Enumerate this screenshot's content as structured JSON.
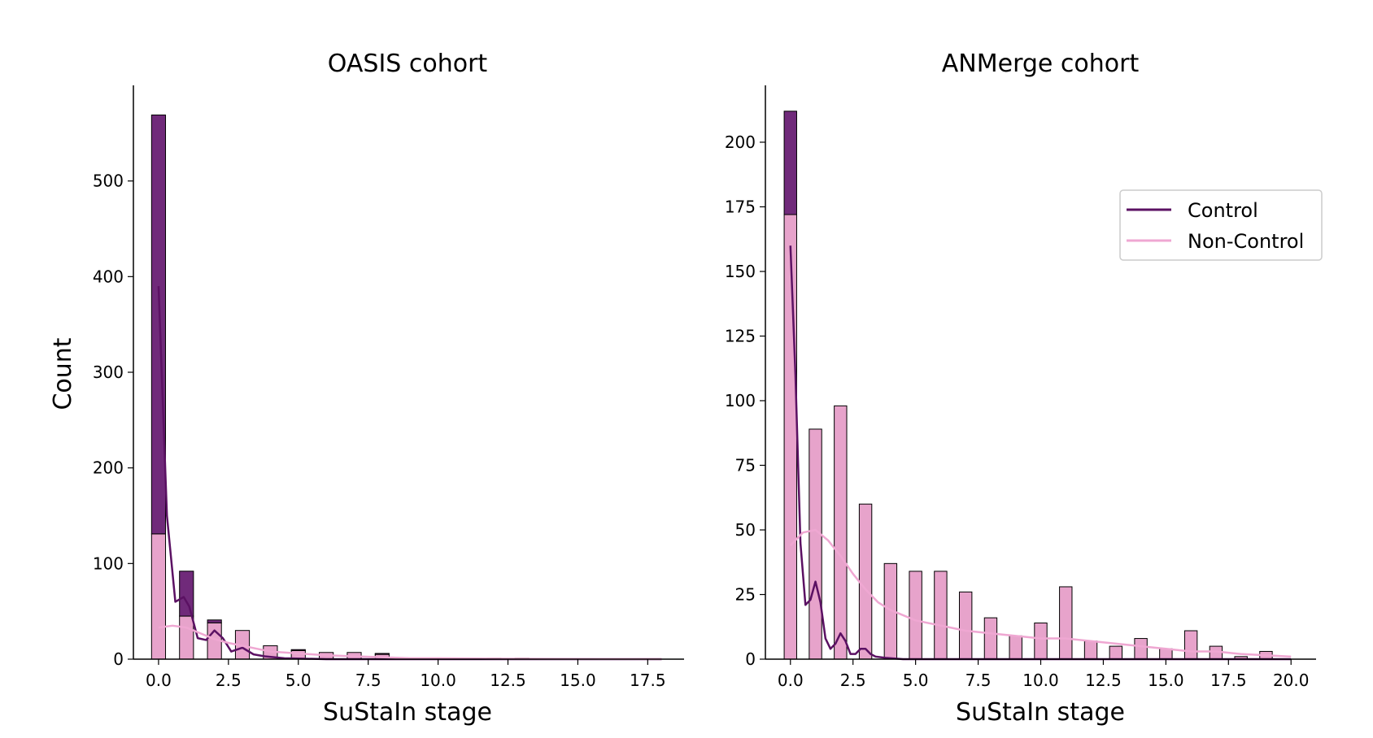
{
  "figure": {
    "ylabel": "Count",
    "legend": {
      "placement": "upper-right of right panel",
      "entries": [
        {
          "label": "Control",
          "color": "#5b1163"
        },
        {
          "label": "Non-Control",
          "color": "#efa7d2"
        }
      ]
    },
    "colors": {
      "control_bar": "#702a7a",
      "noncontrol_bar": "#e7a3cb",
      "control_line": "#5b1163",
      "noncontrol_line": "#efa7d2",
      "bar_edge": "#000000"
    }
  },
  "chart_data": [
    {
      "type": "bar",
      "stacked_histogram_with_kde": true,
      "title": "OASIS cohort",
      "xlabel": "SuStaIn stage",
      "ylabel": "Count",
      "xlim": [
        -0.9,
        18.8
      ],
      "ylim": [
        0,
        600
      ],
      "xticks": [
        "0.0",
        "2.5",
        "5.0",
        "7.5",
        "10.0",
        "12.5",
        "15.0",
        "17.5"
      ],
      "yticks": [
        "0",
        "100",
        "200",
        "300",
        "400",
        "500"
      ],
      "bin_centers": [
        0,
        1,
        2,
        3,
        4,
        5,
        6,
        7,
        8,
        9,
        10,
        11,
        12,
        13,
        14,
        15,
        16,
        17
      ],
      "bin_width": 0.5,
      "series": [
        {
          "name": "Non-Control",
          "values": [
            131,
            45,
            38,
            30,
            14,
            9,
            7,
            7,
            5,
            1,
            1,
            1,
            1,
            1,
            0,
            0,
            0,
            0
          ]
        },
        {
          "name": "Control",
          "values": [
            438,
            47,
            3,
            0,
            0,
            1,
            0,
            0,
            1,
            0,
            0,
            0,
            0,
            0,
            0,
            0,
            0,
            0
          ]
        }
      ],
      "kde": [
        {
          "name": "Control",
          "x": [
            0,
            0.3,
            0.6,
            0.9,
            1.1,
            1.4,
            1.7,
            2.0,
            2.3,
            2.6,
            3.0,
            3.4,
            3.8,
            4.5,
            6,
            8,
            10,
            14,
            18
          ],
          "y": [
            390,
            150,
            60,
            65,
            55,
            22,
            20,
            30,
            22,
            8,
            12,
            5,
            3,
            1,
            0,
            0,
            0,
            0,
            0
          ]
        },
        {
          "name": "Non-Control",
          "x": [
            0,
            0.5,
            1,
            1.5,
            2,
            2.5,
            3,
            3.5,
            4,
            5,
            6,
            7,
            8,
            9,
            10,
            12,
            14,
            16,
            18
          ],
          "y": [
            33,
            35,
            33,
            27,
            21,
            17,
            14,
            11,
            8,
            6,
            4,
            3,
            2,
            1,
            1,
            0.5,
            0.3,
            0.2,
            0.1
          ]
        }
      ]
    },
    {
      "type": "bar",
      "stacked_histogram_with_kde": true,
      "title": "ANMerge cohort",
      "xlabel": "SuStaIn stage",
      "ylabel": "",
      "xlim": [
        -1,
        21
      ],
      "ylim": [
        0,
        222
      ],
      "xticks": [
        "0.0",
        "2.5",
        "5.0",
        "7.5",
        "10.0",
        "12.5",
        "15.0",
        "17.5",
        "20.0"
      ],
      "yticks": [
        "0",
        "25",
        "50",
        "75",
        "100",
        "125",
        "150",
        "175",
        "200"
      ],
      "bin_centers": [
        0,
        1,
        2,
        3,
        4,
        5,
        6,
        7,
        8,
        9,
        10,
        11,
        12,
        13,
        14,
        15,
        16,
        17,
        18,
        19
      ],
      "bin_width": 0.5,
      "series": [
        {
          "name": "Non-Control",
          "values": [
            172,
            89,
            98,
            60,
            37,
            34,
            34,
            26,
            16,
            9,
            14,
            28,
            7,
            5,
            8,
            4,
            11,
            5,
            1,
            3
          ]
        },
        {
          "name": "Control",
          "values": [
            40,
            0,
            0,
            0,
            0,
            0,
            0,
            0,
            0,
            0,
            0,
            0,
            0,
            0,
            0,
            0,
            0,
            0,
            0,
            0
          ]
        }
      ],
      "kde": [
        {
          "name": "Control",
          "x": [
            0,
            0.2,
            0.4,
            0.6,
            0.8,
            1.0,
            1.2,
            1.4,
            1.6,
            1.8,
            2.0,
            2.2,
            2.4,
            2.6,
            2.8,
            3.0,
            3.2,
            3.4,
            3.8,
            4.5,
            6,
            8,
            10,
            14,
            18,
            20
          ],
          "y": [
            160,
            110,
            45,
            21,
            23,
            30,
            22,
            8,
            4,
            6,
            10,
            7,
            2,
            2,
            4,
            4,
            2,
            1,
            0.5,
            0,
            0,
            0,
            0,
            0,
            0,
            0
          ]
        },
        {
          "name": "Non-Control",
          "x": [
            0,
            0.5,
            1,
            1.5,
            2,
            2.5,
            3,
            3.5,
            4,
            5,
            6,
            7,
            8,
            9,
            10,
            11,
            12,
            13,
            14,
            15,
            16,
            17,
            18,
            19,
            20
          ],
          "y": [
            44,
            49,
            50,
            46,
            40,
            33,
            27,
            22,
            19,
            15,
            13,
            11,
            10,
            9,
            8,
            8,
            7,
            6,
            5,
            4,
            3,
            3,
            2,
            1.5,
            1
          ]
        }
      ]
    }
  ]
}
